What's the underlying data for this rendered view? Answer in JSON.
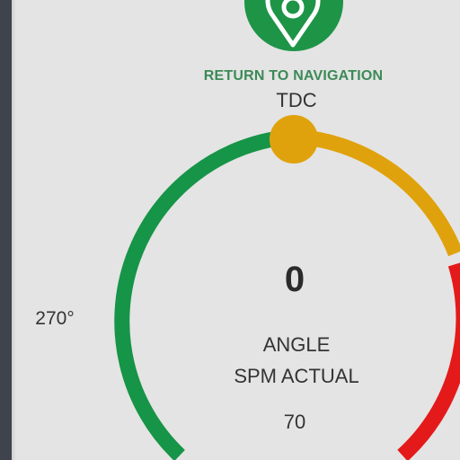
{
  "navigation": {
    "return_label": "RETURN TO NAVIGATION",
    "icon": "location-pin-icon"
  },
  "gauge": {
    "top_marker_label": "TDC",
    "left_marker_label": "270°",
    "angle_value": "0",
    "angle_label": "ANGLE",
    "spm_label": "SPM ACTUAL",
    "spm_value": "70",
    "colors": {
      "green_segment": "#169447",
      "amber_segment": "#e0a20c",
      "red_segment": "#e41a1a",
      "indicator_knob": "#e0a20c"
    }
  }
}
